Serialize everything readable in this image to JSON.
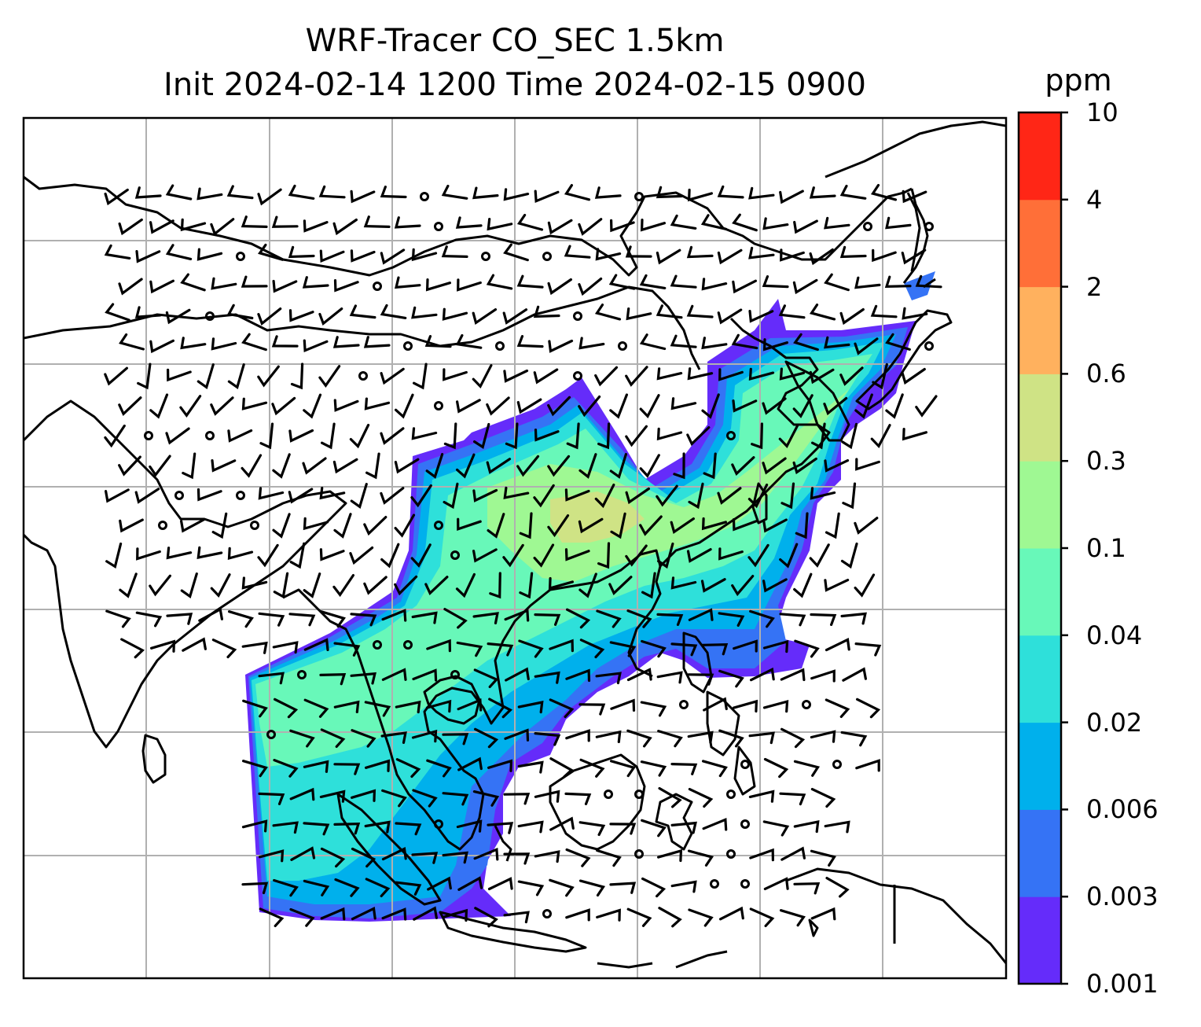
{
  "title_line1": "WRF-Tracer CO_SEC 1.5km",
  "title_line2": "Init 2024-02-14 1200 Time 2024-02-15 0900",
  "colorbar": {
    "units": "ppm",
    "levels": [
      "0.001",
      "0.003",
      "0.006",
      "0.02",
      "0.04",
      "0.1",
      "0.3",
      "0.6",
      "2",
      "4",
      "10"
    ],
    "colors": [
      "#652cfa",
      "#3573f5",
      "#00b0ec",
      "#2ee0da",
      "#68f8b9",
      "#9ff893",
      "#cfe385",
      "#ffb15e",
      "#ff6f38",
      "#ff2616"
    ]
  },
  "map_colors": {
    "land_outline": "#000000",
    "grid": "#b0b0b0",
    "frame": "#000000"
  }
}
